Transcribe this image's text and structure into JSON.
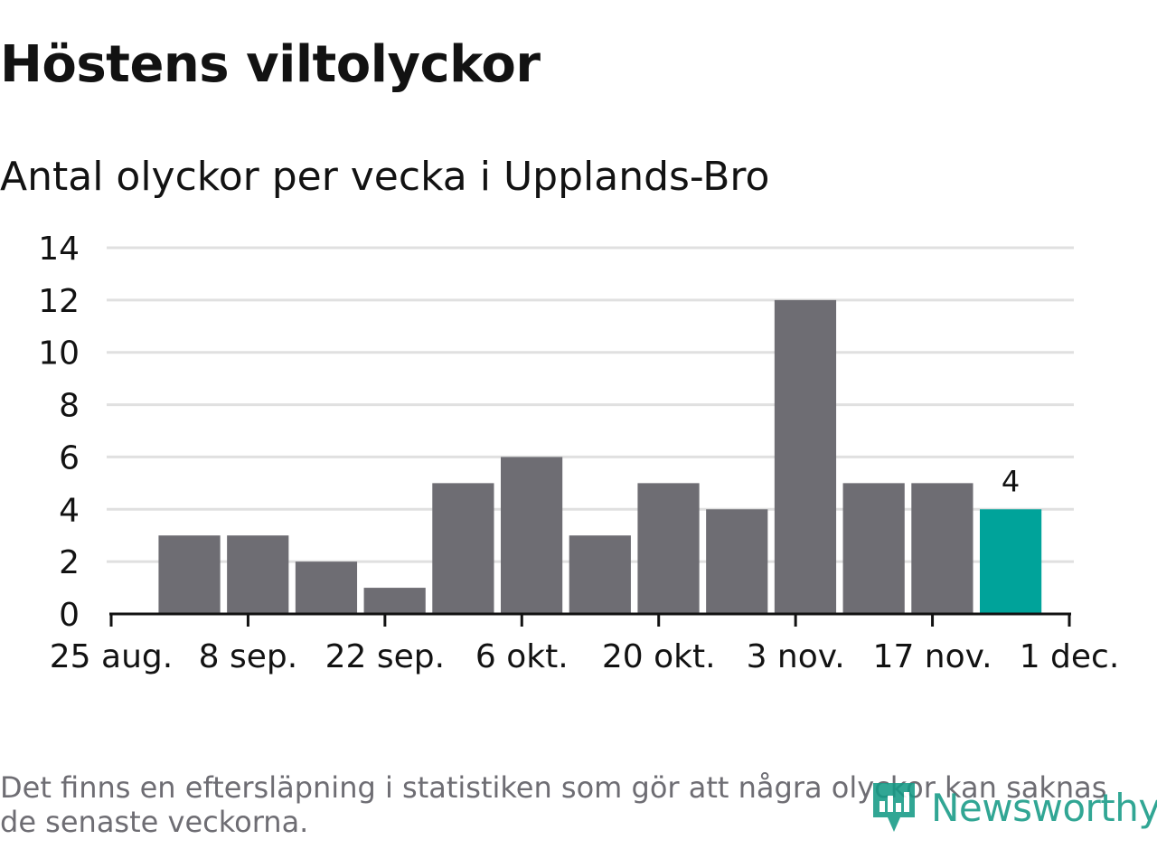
{
  "title": "Höstens viltolyckor",
  "subtitle": "Antal olyckor per vecka i Upplands-Bro",
  "footnote": "Det finns en eftersläpning i statistiken som gör att några olyckor kan saknas de senaste veckorna.",
  "logo": {
    "text": "Newsworthy",
    "icon": "newsworthy-logo-icon"
  },
  "colors": {
    "bar": "#6e6d73",
    "highlight": "#00a39a",
    "grid": "#e0e0e0",
    "axis": "#121212",
    "text": "#121212",
    "footnote": "#6e6d73",
    "logo": "#159a86"
  },
  "chart_data": {
    "type": "bar",
    "title": "Höstens viltolyckor",
    "subtitle": "Antal olyckor per vecka i Upplands-Bro",
    "xlabel": "",
    "ylabel": "",
    "ylim": [
      0,
      14
    ],
    "yticks": [
      "0",
      "2",
      "4",
      "6",
      "8",
      "10",
      "12",
      "14"
    ],
    "xlim": [
      "2019-08-25",
      "2019-12-01"
    ],
    "xticks": [
      {
        "date": "2019-08-25",
        "label": "25 aug."
      },
      {
        "date": "2019-09-08",
        "label": "8 sep."
      },
      {
        "date": "2019-09-22",
        "label": "22 sep."
      },
      {
        "date": "2019-10-06",
        "label": "6 okt."
      },
      {
        "date": "2019-10-20",
        "label": "20 okt."
      },
      {
        "date": "2019-11-03",
        "label": "3 nov."
      },
      {
        "date": "2019-11-17",
        "label": "17 nov."
      },
      {
        "date": "2019-12-01",
        "label": "1 dec."
      }
    ],
    "weeks": [
      "2019-09-02",
      "2019-09-09",
      "2019-09-16",
      "2019-09-23",
      "2019-09-30",
      "2019-10-07",
      "2019-10-14",
      "2019-10-21",
      "2019-10-28",
      "2019-11-04",
      "2019-11-11",
      "2019-11-18",
      "2019-11-25"
    ],
    "values": [
      3,
      3,
      2,
      1,
      5,
      6,
      3,
      5,
      4,
      12,
      5,
      5,
      4
    ],
    "highlight_last": true,
    "data_labels": [
      "4"
    ],
    "grid": true,
    "legend": "none"
  }
}
